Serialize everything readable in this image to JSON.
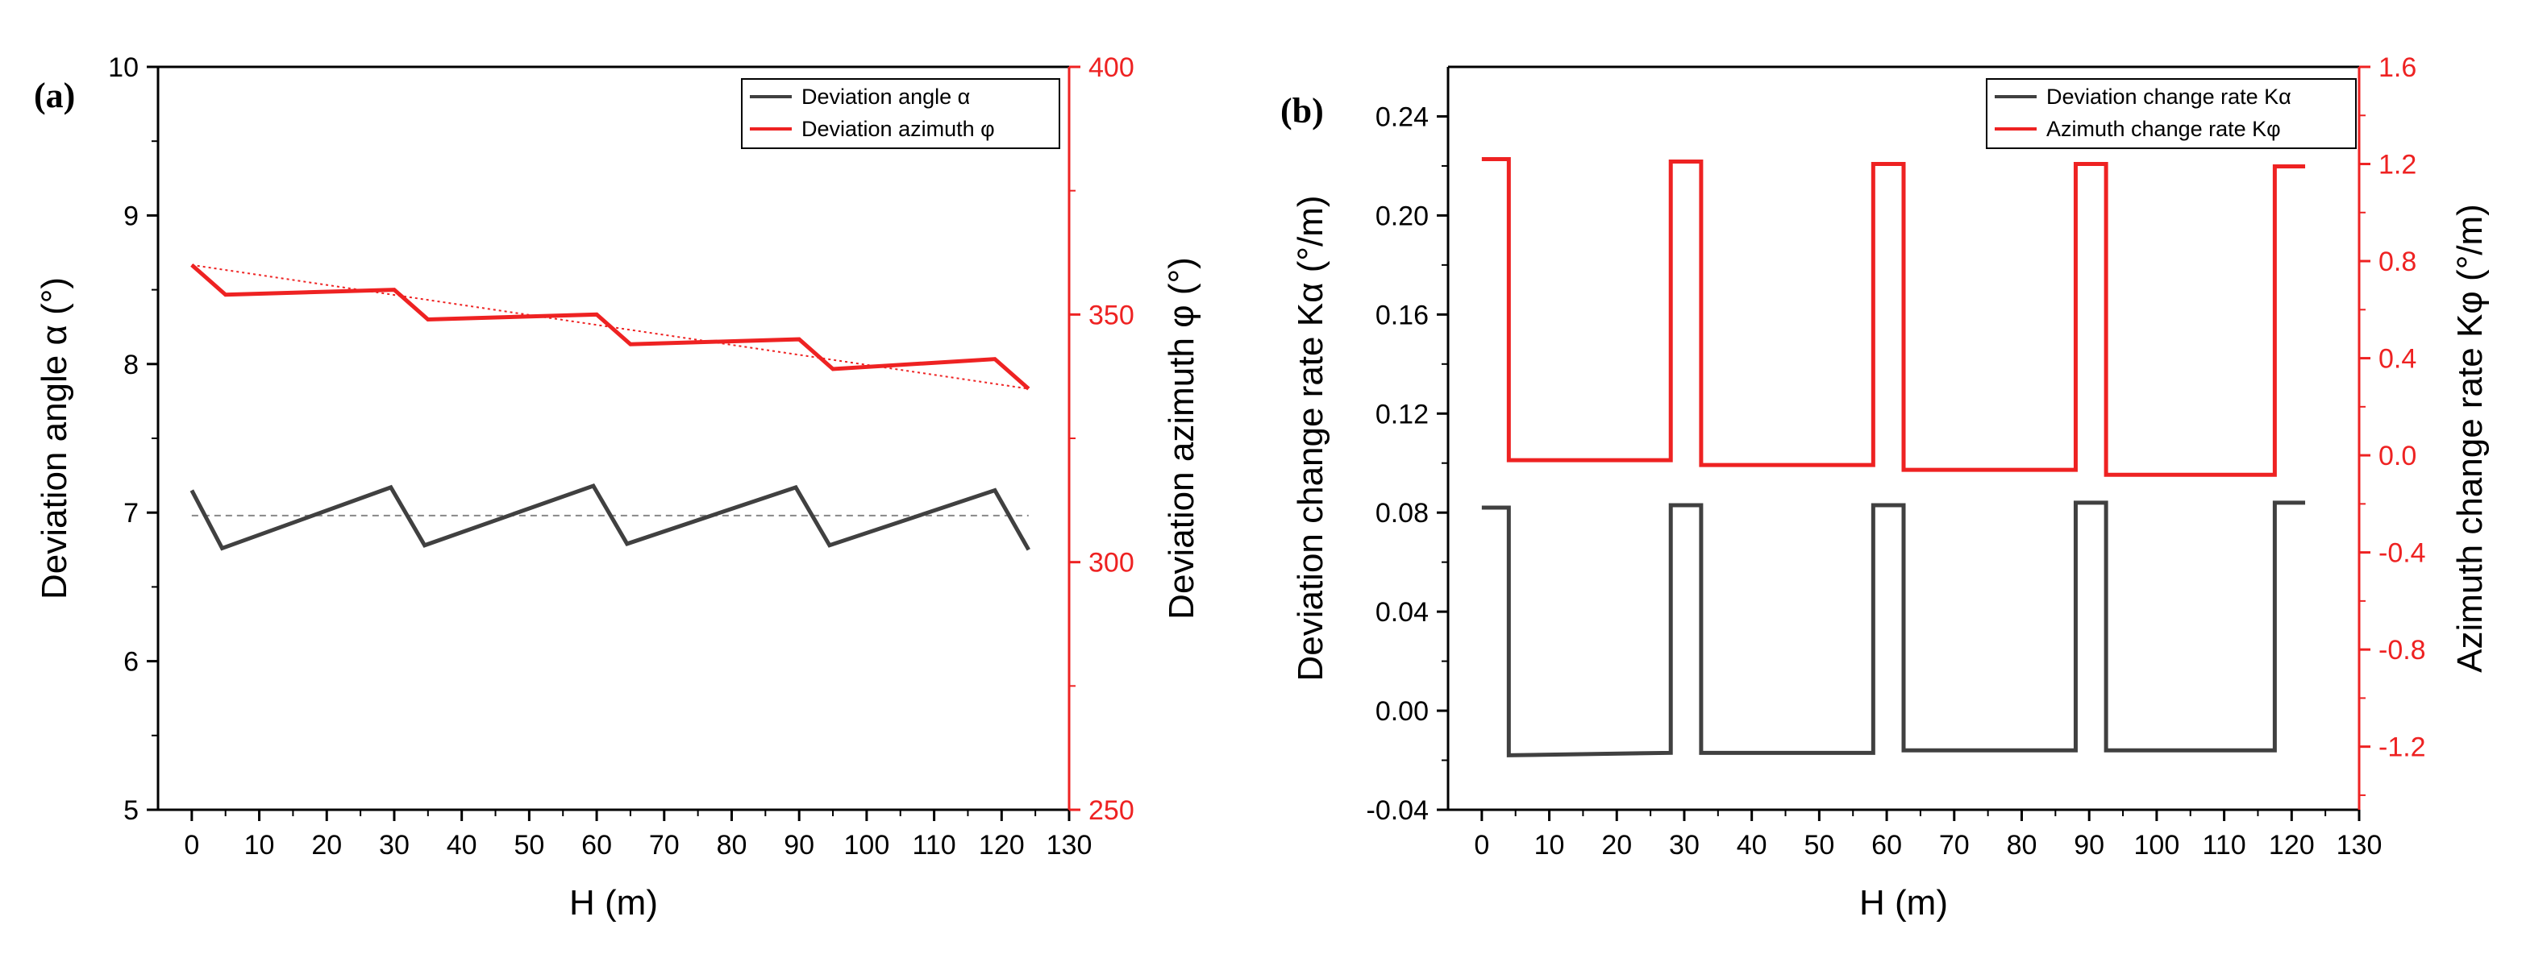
{
  "colors": {
    "black_series": "#404040",
    "red_series": "#ee2222",
    "axis": "#000000"
  },
  "chart_data": [
    {
      "panel": "(a)",
      "type": "line",
      "xlabel": "H (m)",
      "ylabel": "Deviation angle α (°)",
      "y2label": "Deviation azimuth φ (°)",
      "xlim": [
        -5,
        130
      ],
      "xticks": [
        0,
        10,
        20,
        30,
        40,
        50,
        60,
        70,
        80,
        90,
        100,
        110,
        120,
        130
      ],
      "ylim": [
        5,
        10
      ],
      "yticks": [
        5,
        6,
        7,
        8,
        9,
        10
      ],
      "y2lim": [
        250,
        400
      ],
      "y2ticks": [
        250,
        300,
        350,
        400
      ],
      "legend_position": "top-right",
      "series": [
        {
          "name": "Deviation angle α",
          "axis": "left",
          "color": "#404040",
          "x": [
            0,
            4.5,
            29.5,
            34.5,
            59.5,
            64.5,
            89.5,
            94.5,
            119,
            124
          ],
          "y": [
            7.15,
            6.76,
            7.17,
            6.78,
            7.18,
            6.79,
            7.17,
            6.78,
            7.15,
            6.75
          ]
        },
        {
          "name": "Deviation azimuth φ",
          "axis": "right",
          "color": "#ee2222",
          "x": [
            0,
            5,
            30,
            35,
            60,
            65,
            90,
            95,
            119,
            124
          ],
          "y": [
            360,
            354,
            355,
            349,
            350,
            344,
            345,
            339,
            341,
            335
          ]
        }
      ],
      "reference_lines": [
        {
          "style": "dashed",
          "axis": "left",
          "color": "#888888",
          "x": [
            0,
            124
          ],
          "y": [
            6.98,
            6.98
          ]
        },
        {
          "style": "dotted",
          "axis": "right",
          "color": "#ee2222",
          "x": [
            0,
            124
          ],
          "y": [
            360,
            335
          ]
        }
      ]
    },
    {
      "panel": "(b)",
      "type": "line",
      "xlabel": "H (m)",
      "ylabel": "Deviation change rate Kα (°/m)",
      "y2label": "Azimuth change rate Kφ (°/m)",
      "xlim": [
        -5,
        130
      ],
      "xticks": [
        0,
        10,
        20,
        30,
        40,
        50,
        60,
        70,
        80,
        90,
        100,
        110,
        120,
        130
      ],
      "ylim": [
        -0.04,
        0.26
      ],
      "yticks": [
        -0.04,
        0.0,
        0.04,
        0.08,
        0.12,
        0.16,
        0.2,
        0.24
      ],
      "ytick_labels": [
        "-0.04",
        "0.00",
        "0.04",
        "0.08",
        "0.12",
        "0.16",
        "0.20",
        "0.24"
      ],
      "y2lim": [
        -1.46,
        1.6
      ],
      "y2ticks": [
        -1.2,
        -0.8,
        -0.4,
        0.0,
        0.4,
        0.8,
        1.2,
        1.6
      ],
      "y2tick_labels": [
        "-1.2",
        "-0.8",
        "-0.4",
        "0.0",
        "0.4",
        "0.8",
        "1.2",
        "1.6"
      ],
      "legend_position": "top-right",
      "series": [
        {
          "name": "Deviation change rate Kα",
          "axis": "left",
          "color": "#404040",
          "x": [
            0,
            4,
            4,
            28,
            28,
            32.5,
            32.5,
            58,
            58,
            62.5,
            62.5,
            88,
            88,
            92.5,
            92.5,
            117.5,
            117.5,
            122
          ],
          "y": [
            0.082,
            0.082,
            -0.018,
            -0.017,
            0.083,
            0.083,
            -0.017,
            -0.017,
            0.083,
            0.083,
            -0.016,
            -0.016,
            0.084,
            0.084,
            -0.016,
            -0.016,
            0.084,
            0.084
          ]
        },
        {
          "name": "Azimuth change rate Kφ",
          "axis": "right",
          "color": "#ee2222",
          "x": [
            0,
            4,
            4,
            28,
            28,
            32.5,
            32.5,
            58,
            58,
            62.5,
            62.5,
            88,
            88,
            92.5,
            92.5,
            117.5,
            117.5,
            122
          ],
          "y": [
            1.22,
            1.22,
            -0.02,
            -0.02,
            1.21,
            1.21,
            -0.04,
            -0.04,
            1.2,
            1.2,
            -0.06,
            -0.06,
            1.2,
            1.2,
            -0.08,
            -0.08,
            1.19,
            1.19
          ]
        }
      ]
    }
  ]
}
